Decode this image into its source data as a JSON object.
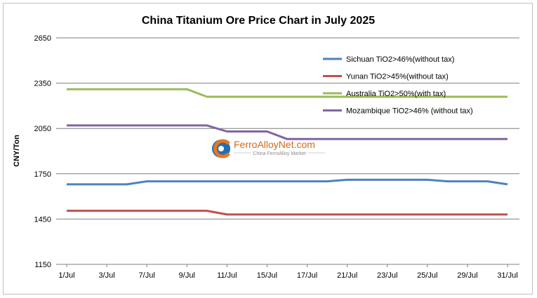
{
  "chart_data": {
    "type": "line",
    "title": "China Titanium Ore Price Chart in July 2025",
    "xlabel": "",
    "ylabel": "CNY/Ton",
    "ylim": [
      1150,
      2650
    ],
    "yticks": [
      1150,
      1450,
      1750,
      2050,
      2350,
      2650
    ],
    "grid": true,
    "legend_position": "top-right",
    "x": [
      "1/Jul",
      "2/Jul",
      "3/Jul",
      "4/Jul",
      "7/Jul",
      "8/Jul",
      "9/Jul",
      "10/Jul",
      "11/Jul",
      "14/Jul",
      "15/Jul",
      "16/Jul",
      "17/Jul",
      "18/Jul",
      "21/Jul",
      "22/Jul",
      "23/Jul",
      "24/Jul",
      "25/Jul",
      "28/Jul",
      "29/Jul",
      "30/Jul",
      "31/Jul"
    ],
    "x_tick_labels": [
      "1/Jul",
      "3/Jul",
      "7/Jul",
      "9/Jul",
      "11/Jul",
      "15/Jul",
      "17/Jul",
      "21/Jul",
      "23/Jul",
      "25/Jul",
      "29/Jul",
      "31/Jul"
    ],
    "series": [
      {
        "name": "Sichuan TiO2>46%(without tax)",
        "color": "#4f81bd",
        "values": [
          1680,
          1680,
          1680,
          1680,
          1700,
          1700,
          1700,
          1700,
          1700,
          1700,
          1700,
          1700,
          1700,
          1700,
          1710,
          1710,
          1710,
          1710,
          1710,
          1700,
          1700,
          1700,
          1680
        ]
      },
      {
        "name": "Yunan TiO2>45%(without tax)",
        "color": "#c0504d",
        "values": [
          1505,
          1505,
          1505,
          1505,
          1505,
          1505,
          1505,
          1505,
          1480,
          1480,
          1480,
          1480,
          1480,
          1480,
          1480,
          1480,
          1480,
          1480,
          1480,
          1480,
          1480,
          1480,
          1480
        ]
      },
      {
        "name": "Australia TiO2>50%(with tax)",
        "color": "#9bbb59",
        "values": [
          2310,
          2310,
          2310,
          2310,
          2310,
          2310,
          2310,
          2260,
          2260,
          2260,
          2260,
          2260,
          2260,
          2260,
          2260,
          2260,
          2260,
          2260,
          2260,
          2260,
          2260,
          2260,
          2260
        ]
      },
      {
        "name": "Mozambique TiO2>46% (without tax)",
        "color": "#8064a2",
        "values": [
          2070,
          2070,
          2070,
          2070,
          2070,
          2070,
          2070,
          2070,
          2030,
          2030,
          2030,
          1980,
          1980,
          1980,
          1980,
          1980,
          1980,
          1980,
          1980,
          1980,
          1980,
          1980,
          1980
        ]
      }
    ]
  },
  "watermark": {
    "brand": "FerroAlloyNet.com",
    "tagline": "China FerroAlloy Market"
  }
}
